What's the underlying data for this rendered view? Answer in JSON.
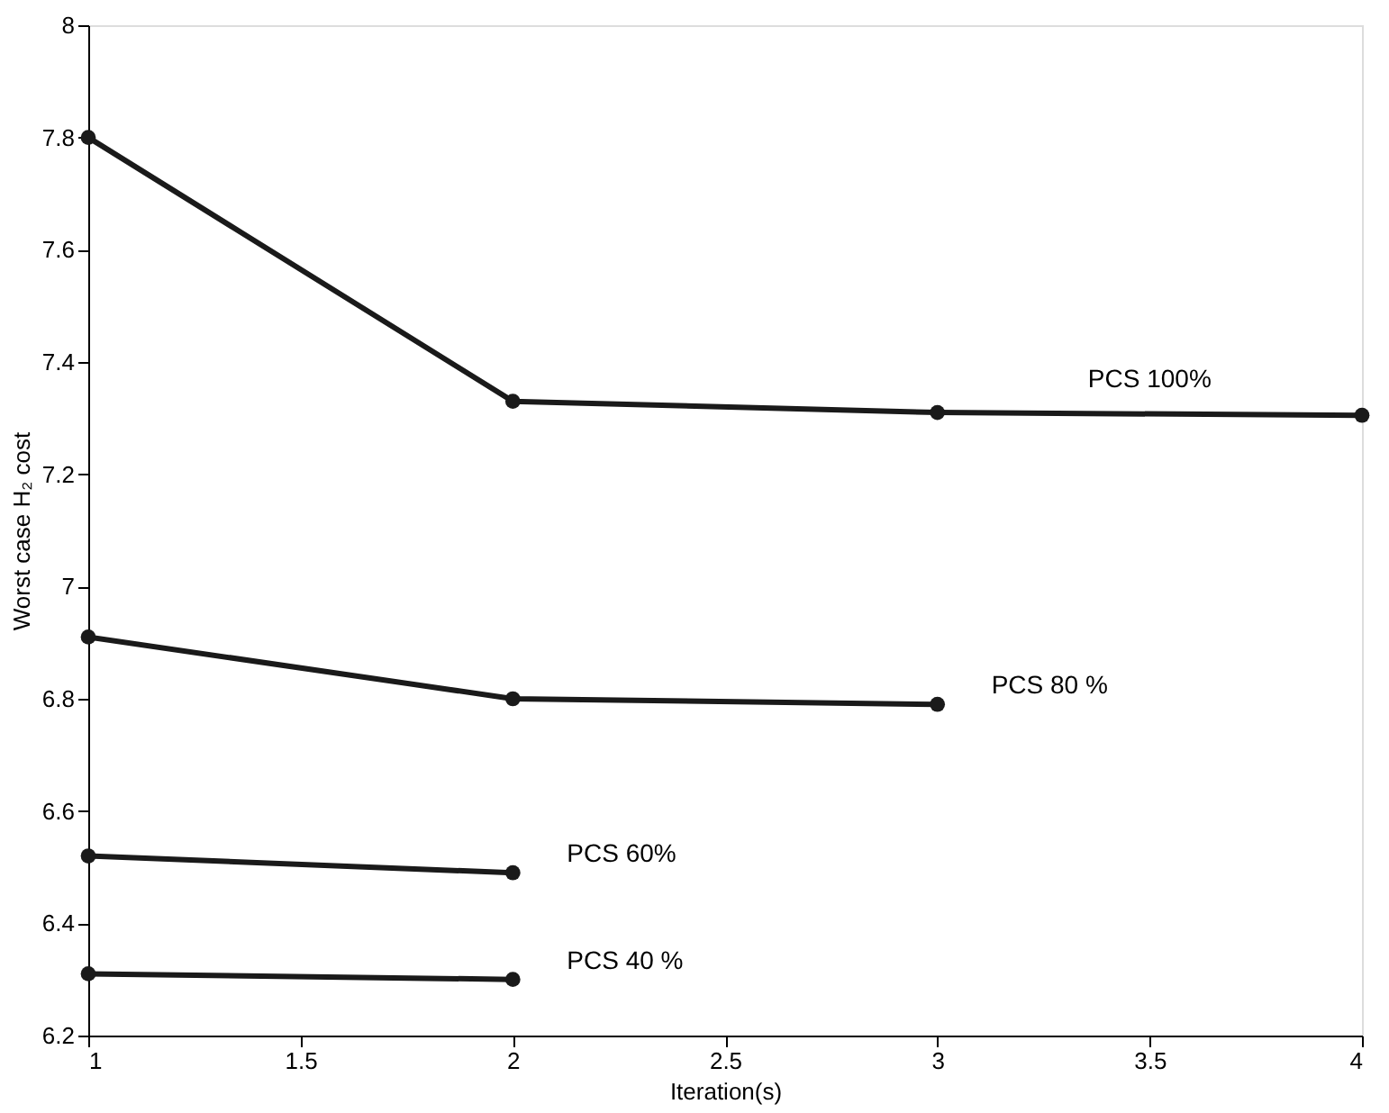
{
  "chart_data": {
    "type": "line",
    "xlabel": "Iteration(s)",
    "ylabel": "Worst case H₂ cost",
    "xlim": [
      1,
      4
    ],
    "xticks": [
      1,
      1.5,
      2,
      2.5,
      3,
      3.5,
      4
    ],
    "ylim": [
      6.2,
      8
    ],
    "yticks": [
      6.2,
      6.4,
      6.6,
      6.8,
      7,
      7.2,
      7.4,
      7.6,
      7.8,
      8
    ],
    "grid": false,
    "marker": "circle",
    "line_style": "solid",
    "series": [
      {
        "name": "PCS 100%",
        "color": "#1a1a1a",
        "x": [
          1,
          2,
          3,
          4
        ],
        "values": [
          7.8,
          7.33,
          7.31,
          7.305
        ]
      },
      {
        "name": "PCS 80 %",
        "color": "#1a1a1a",
        "x": [
          1,
          2,
          3
        ],
        "values": [
          6.91,
          6.8,
          6.79
        ]
      },
      {
        "name": "PCS 60%",
        "color": "#1a1a1a",
        "x": [
          1,
          2
        ],
        "values": [
          6.52,
          6.49
        ]
      },
      {
        "name": "PCS 40 %",
        "color": "#1a1a1a",
        "x": [
          1,
          2
        ],
        "values": [
          6.31,
          6.3
        ]
      }
    ]
  }
}
